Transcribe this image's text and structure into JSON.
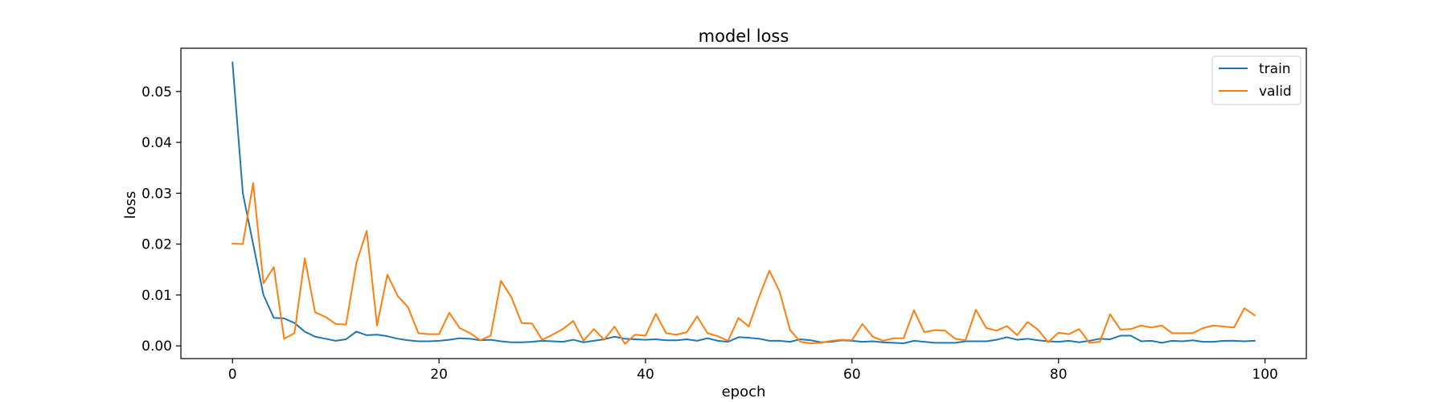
{
  "chart_data": {
    "type": "line",
    "title": "model loss",
    "xlabel": "epoch",
    "ylabel": "loss",
    "xlim": [
      -5,
      104
    ],
    "ylim": [
      -0.0025,
      0.0585
    ],
    "xticks": [
      0,
      20,
      40,
      60,
      80,
      100
    ],
    "yticks": [
      0.0,
      0.01,
      0.02,
      0.03,
      0.04,
      0.05
    ],
    "xtick_labels": [
      "0",
      "20",
      "40",
      "60",
      "80",
      "100"
    ],
    "ytick_labels": [
      "0.00",
      "0.01",
      "0.02",
      "0.03",
      "0.04",
      "0.05"
    ],
    "grid": false,
    "legend_position": "upper right",
    "series": [
      {
        "name": "train",
        "color": "#1f77b4",
        "x": [
          0,
          1,
          2,
          3,
          4,
          5,
          6,
          7,
          8,
          9,
          10,
          11,
          12,
          13,
          14,
          15,
          16,
          17,
          18,
          19,
          20,
          21,
          22,
          23,
          24,
          25,
          26,
          27,
          28,
          29,
          30,
          31,
          32,
          33,
          34,
          35,
          36,
          37,
          38,
          39,
          40,
          41,
          42,
          43,
          44,
          45,
          46,
          47,
          48,
          49,
          50,
          51,
          52,
          53,
          54,
          55,
          56,
          57,
          58,
          59,
          60,
          61,
          62,
          63,
          64,
          65,
          66,
          67,
          68,
          69,
          70,
          71,
          72,
          73,
          74,
          75,
          76,
          77,
          78,
          79,
          80,
          81,
          82,
          83,
          84,
          85,
          86,
          87,
          88,
          89,
          90,
          91,
          92,
          93,
          94,
          95,
          96,
          97,
          98,
          99
        ],
        "values": [
          0.0557,
          0.03,
          0.02,
          0.01,
          0.0055,
          0.0054,
          0.0045,
          0.0028,
          0.0018,
          0.0014,
          0.001,
          0.0013,
          0.0028,
          0.0021,
          0.0022,
          0.0019,
          0.0014,
          0.0011,
          0.0009,
          0.0009,
          0.001,
          0.0012,
          0.0015,
          0.0014,
          0.0011,
          0.0012,
          0.0009,
          0.0007,
          0.0007,
          0.0008,
          0.001,
          0.0009,
          0.0008,
          0.0012,
          0.0007,
          0.001,
          0.0013,
          0.0018,
          0.0014,
          0.0013,
          0.0012,
          0.0013,
          0.0011,
          0.0011,
          0.0013,
          0.001,
          0.0015,
          0.001,
          0.0008,
          0.0017,
          0.0016,
          0.0014,
          0.001,
          0.001,
          0.0008,
          0.0013,
          0.0011,
          0.0007,
          0.0008,
          0.0011,
          0.001,
          0.0008,
          0.0009,
          0.0007,
          0.0006,
          0.0005,
          0.001,
          0.0008,
          0.0006,
          0.0006,
          0.0006,
          0.0009,
          0.0009,
          0.0009,
          0.0012,
          0.0017,
          0.0012,
          0.0014,
          0.0011,
          0.0009,
          0.0008,
          0.001,
          0.0007,
          0.001,
          0.0014,
          0.0013,
          0.002,
          0.002,
          0.0009,
          0.001,
          0.0006,
          0.001,
          0.0009,
          0.0011,
          0.0008,
          0.0008,
          0.001,
          0.001,
          0.0009,
          0.001
        ]
      },
      {
        "name": "valid",
        "color": "#ff7f0e",
        "x": [
          0,
          1,
          2,
          3,
          4,
          5,
          6,
          7,
          8,
          9,
          10,
          11,
          12,
          13,
          14,
          15,
          16,
          17,
          18,
          19,
          20,
          21,
          22,
          23,
          24,
          25,
          26,
          27,
          28,
          29,
          30,
          31,
          32,
          33,
          34,
          35,
          36,
          37,
          38,
          39,
          40,
          41,
          42,
          43,
          44,
          45,
          46,
          47,
          48,
          49,
          50,
          51,
          52,
          53,
          54,
          55,
          56,
          57,
          58,
          59,
          60,
          61,
          62,
          63,
          64,
          65,
          66,
          67,
          68,
          69,
          70,
          71,
          72,
          73,
          74,
          75,
          76,
          77,
          78,
          79,
          80,
          81,
          82,
          83,
          84,
          85,
          86,
          87,
          88,
          89,
          90,
          91,
          92,
          93,
          94,
          95,
          96,
          97,
          98,
          99
        ],
        "values": [
          0.0201,
          0.02,
          0.032,
          0.0123,
          0.0155,
          0.0014,
          0.0025,
          0.0172,
          0.0066,
          0.0057,
          0.0043,
          0.0042,
          0.0163,
          0.0226,
          0.004,
          0.014,
          0.0098,
          0.0076,
          0.0025,
          0.0023,
          0.0023,
          0.0065,
          0.0035,
          0.0025,
          0.0011,
          0.002,
          0.0128,
          0.0096,
          0.0045,
          0.0044,
          0.0012,
          0.0022,
          0.0033,
          0.0049,
          0.001,
          0.0033,
          0.0012,
          0.0038,
          0.0004,
          0.0022,
          0.002,
          0.0063,
          0.0025,
          0.0022,
          0.0027,
          0.0058,
          0.0025,
          0.0019,
          0.001,
          0.0055,
          0.0038,
          0.0096,
          0.0148,
          0.0106,
          0.0031,
          0.0008,
          0.0005,
          0.0006,
          0.001,
          0.0012,
          0.0011,
          0.0043,
          0.0018,
          0.001,
          0.0015,
          0.0015,
          0.007,
          0.0027,
          0.0031,
          0.003,
          0.0014,
          0.0011,
          0.0071,
          0.0035,
          0.003,
          0.0039,
          0.0021,
          0.0047,
          0.0032,
          0.0007,
          0.0026,
          0.0023,
          0.0033,
          0.0006,
          0.0008,
          0.0062,
          0.0032,
          0.0033,
          0.004,
          0.0036,
          0.004,
          0.0025,
          0.0025,
          0.0025,
          0.0035,
          0.004,
          0.0038,
          0.0036,
          0.0074,
          0.006
        ]
      }
    ]
  }
}
